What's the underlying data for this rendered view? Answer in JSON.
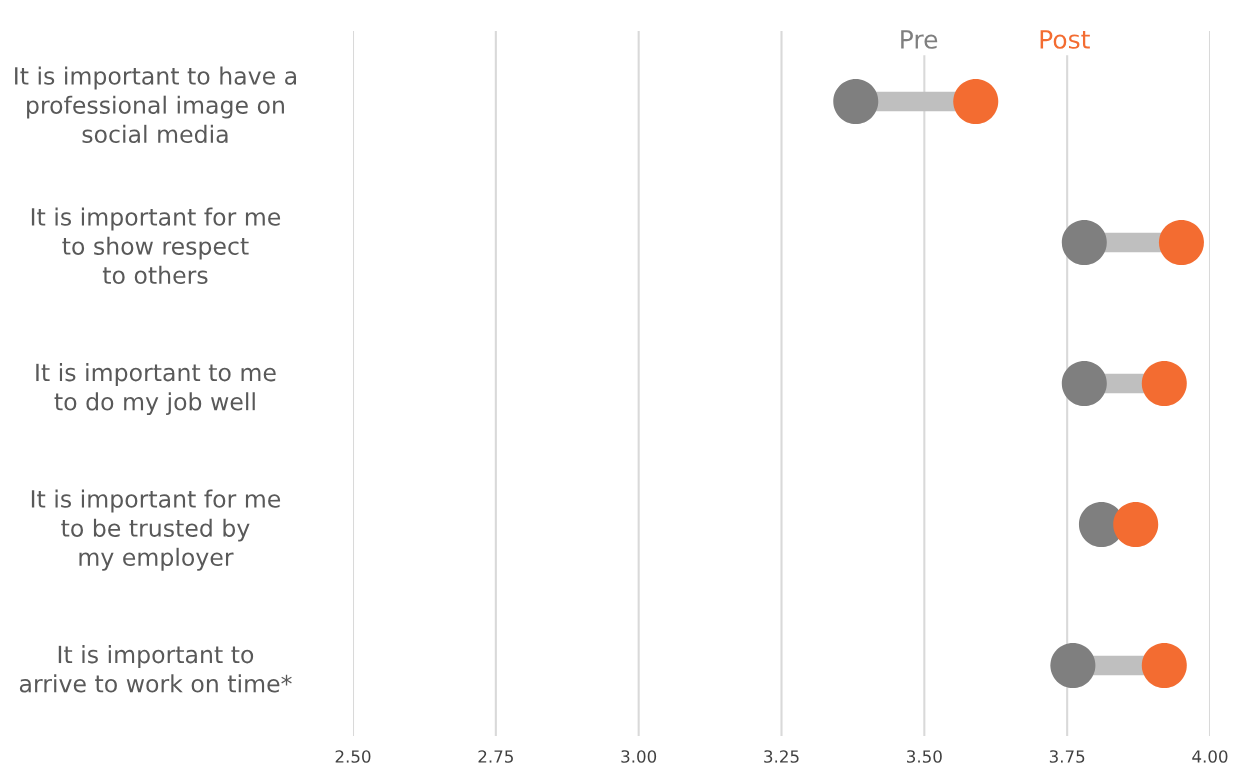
{
  "chart_data": {
    "type": "scatter",
    "orientation": "horizontal",
    "categories": [
      "It is important to have a\nprofessional image on\nsocial media",
      "It is important for me\nto show respect\nto others",
      "It is important to me\nto do my job well",
      "It is important for me\nto be trusted by\nmy employer",
      "It is important to\narrive to work on time*"
    ],
    "series": [
      {
        "name": "Pre",
        "color": "#7f7f7f",
        "values": [
          3.38,
          3.78,
          3.78,
          3.81,
          3.76
        ]
      },
      {
        "name": "Post",
        "color": "#f36c31",
        "values": [
          3.59,
          3.95,
          3.92,
          3.87,
          3.92
        ]
      }
    ],
    "xlim": [
      2.5,
      4.0
    ],
    "xticks": [
      {
        "value": 2.5,
        "label": "2.50"
      },
      {
        "value": 2.75,
        "label": "2.75"
      },
      {
        "value": 3.0,
        "label": "3.00"
      },
      {
        "value": 3.25,
        "label": "3.25"
      },
      {
        "value": 3.5,
        "label": "3.50"
      },
      {
        "value": 3.75,
        "label": "3.75"
      },
      {
        "value": 4.0,
        "label": "4.00"
      }
    ],
    "grid": "x",
    "legend": "top",
    "marker": "circle"
  }
}
